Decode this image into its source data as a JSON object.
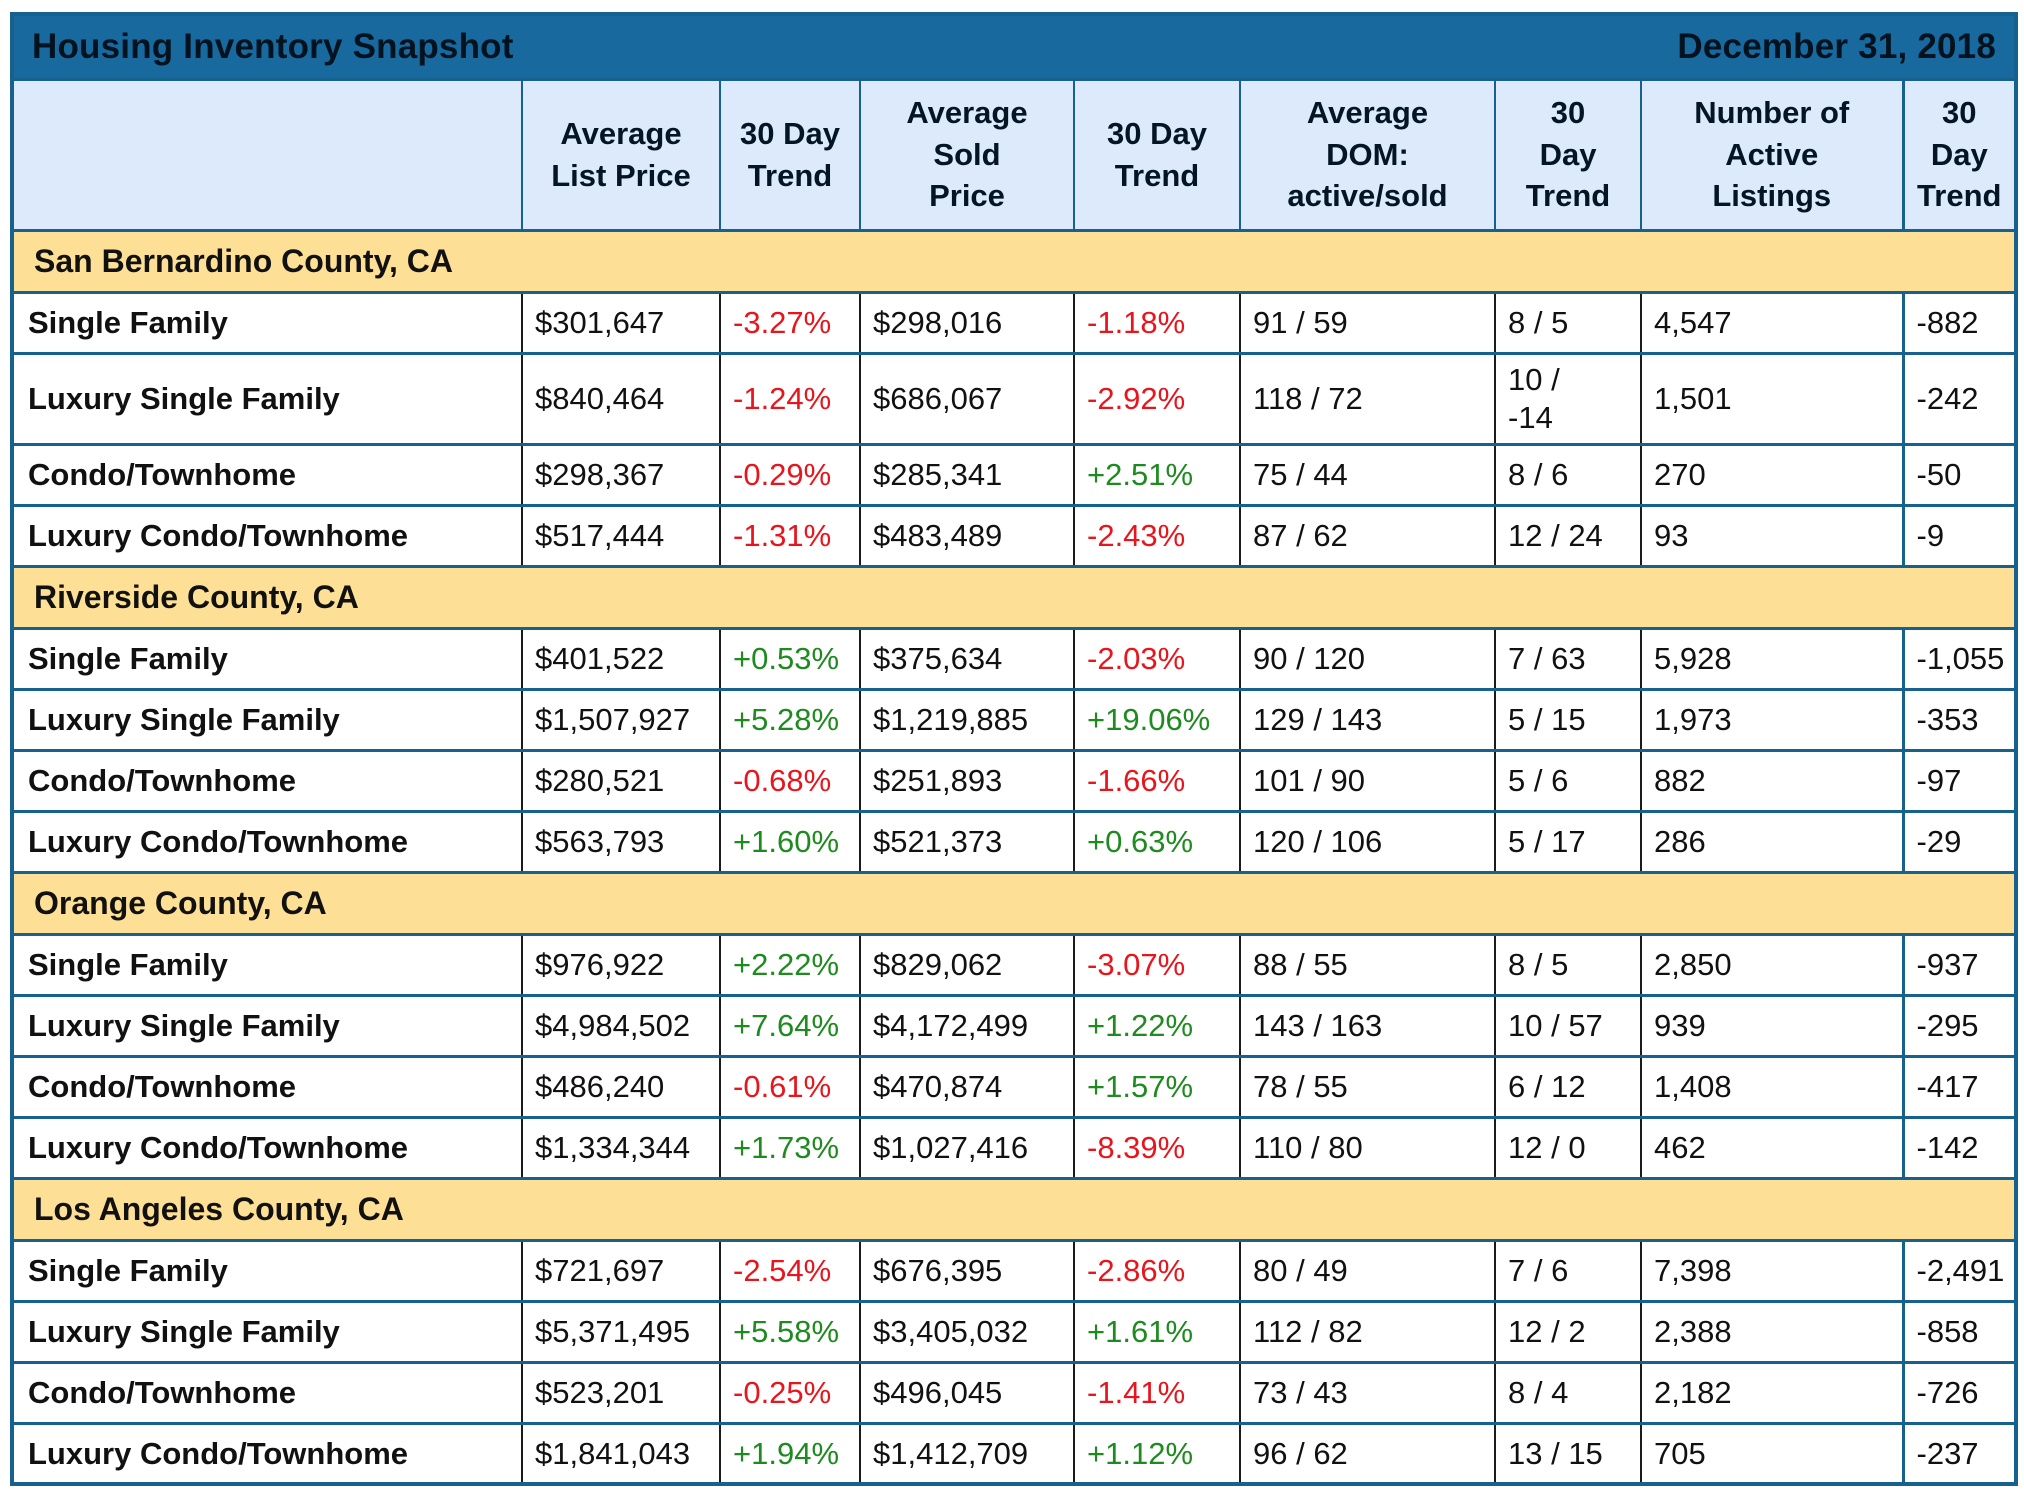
{
  "colors": {
    "title_bar_bg": "#17699E",
    "header_row_bg": "#DCEAFB",
    "section_row_bg": "#FDE096",
    "table_border": "#16618E",
    "negative_text": "#E8151D",
    "positive_text": "#1F8A1F"
  },
  "chart_data": {
    "type": "table",
    "title": "Housing Inventory Snapshot",
    "date": "December 31, 2018",
    "columns": [
      "",
      "Average\nList Price",
      "30 Day\nTrend",
      "Average\nSold\nPrice",
      "30 Day\nTrend",
      "Average\nDOM:\nactive/sold",
      "30\nDay\nTrend",
      "Number of\nActive\nListings",
      "30\nDay\nTrend"
    ],
    "sections": [
      {
        "name": "San Bernardino County, CA",
        "rows": [
          {
            "label": "Single Family",
            "cells": [
              {
                "text": "$301,647"
              },
              {
                "text": "-3.27%",
                "tone": "negative"
              },
              {
                "text": "$298,016"
              },
              {
                "text": "-1.18%",
                "tone": "negative"
              },
              {
                "text": "91 / 59"
              },
              {
                "text": "8 / 5"
              },
              {
                "text": "4,547"
              },
              {
                "text": "-882"
              }
            ]
          },
          {
            "label": "Luxury Single Family",
            "cells": [
              {
                "text": "$840,464"
              },
              {
                "text": "-1.24%",
                "tone": "negative"
              },
              {
                "text": "$686,067"
              },
              {
                "text": "-2.92%",
                "tone": "negative"
              },
              {
                "text": "118 / 72"
              },
              {
                "text": "10 /\n-14"
              },
              {
                "text": "1,501"
              },
              {
                "text": "-242"
              }
            ]
          },
          {
            "label": "Condo/Townhome",
            "cells": [
              {
                "text": "$298,367"
              },
              {
                "text": "-0.29%",
                "tone": "negative"
              },
              {
                "text": "$285,341"
              },
              {
                "text": "+2.51%",
                "tone": "positive"
              },
              {
                "text": "75 / 44"
              },
              {
                "text": "8 / 6"
              },
              {
                "text": "270"
              },
              {
                "text": "-50"
              }
            ]
          },
          {
            "label": "Luxury Condo/Townhome",
            "cells": [
              {
                "text": "$517,444"
              },
              {
                "text": "-1.31%",
                "tone": "negative"
              },
              {
                "text": "$483,489"
              },
              {
                "text": "-2.43%",
                "tone": "negative"
              },
              {
                "text": "87 / 62"
              },
              {
                "text": "12 / 24"
              },
              {
                "text": "93"
              },
              {
                "text": "-9"
              }
            ]
          }
        ]
      },
      {
        "name": "Riverside County, CA",
        "rows": [
          {
            "label": "Single Family",
            "cells": [
              {
                "text": "$401,522"
              },
              {
                "text": "+0.53%",
                "tone": "positive"
              },
              {
                "text": "$375,634"
              },
              {
                "text": "-2.03%",
                "tone": "negative"
              },
              {
                "text": "90 / 120"
              },
              {
                "text": "7 / 63"
              },
              {
                "text": "5,928"
              },
              {
                "text": "-1,055"
              }
            ]
          },
          {
            "label": "Luxury Single Family",
            "cells": [
              {
                "text": "$1,507,927"
              },
              {
                "text": "+5.28%",
                "tone": "positive"
              },
              {
                "text": "$1,219,885"
              },
              {
                "text": "+19.06%",
                "tone": "positive"
              },
              {
                "text": "129 / 143"
              },
              {
                "text": "5 / 15"
              },
              {
                "text": "1,973"
              },
              {
                "text": "-353"
              }
            ]
          },
          {
            "label": "Condo/Townhome",
            "cells": [
              {
                "text": "$280,521"
              },
              {
                "text": "-0.68%",
                "tone": "negative"
              },
              {
                "text": "$251,893"
              },
              {
                "text": "-1.66%",
                "tone": "negative"
              },
              {
                "text": "101 / 90"
              },
              {
                "text": "5 / 6"
              },
              {
                "text": "882"
              },
              {
                "text": "-97"
              }
            ]
          },
          {
            "label": "Luxury Condo/Townhome",
            "cells": [
              {
                "text": "$563,793"
              },
              {
                "text": "+1.60%",
                "tone": "positive"
              },
              {
                "text": "$521,373"
              },
              {
                "text": "+0.63%",
                "tone": "positive"
              },
              {
                "text": "120 / 106"
              },
              {
                "text": "5 / 17"
              },
              {
                "text": "286"
              },
              {
                "text": "-29"
              }
            ]
          }
        ]
      },
      {
        "name": "Orange County, CA",
        "rows": [
          {
            "label": "Single Family",
            "cells": [
              {
                "text": "$976,922"
              },
              {
                "text": "+2.22%",
                "tone": "positive"
              },
              {
                "text": "$829,062"
              },
              {
                "text": "-3.07%",
                "tone": "negative"
              },
              {
                "text": "88 / 55"
              },
              {
                "text": "8 / 5"
              },
              {
                "text": "2,850"
              },
              {
                "text": "-937"
              }
            ]
          },
          {
            "label": "Luxury Single Family",
            "cells": [
              {
                "text": "$4,984,502"
              },
              {
                "text": "+7.64%",
                "tone": "positive"
              },
              {
                "text": "$4,172,499"
              },
              {
                "text": "+1.22%",
                "tone": "positive"
              },
              {
                "text": "143 / 163"
              },
              {
                "text": "10 / 57"
              },
              {
                "text": "939"
              },
              {
                "text": "-295"
              }
            ]
          },
          {
            "label": "Condo/Townhome",
            "cells": [
              {
                "text": "$486,240"
              },
              {
                "text": "-0.61%",
                "tone": "negative"
              },
              {
                "text": "$470,874"
              },
              {
                "text": "+1.57%",
                "tone": "positive"
              },
              {
                "text": "78 / 55"
              },
              {
                "text": "6 / 12"
              },
              {
                "text": "1,408"
              },
              {
                "text": "-417"
              }
            ]
          },
          {
            "label": "Luxury Condo/Townhome",
            "cells": [
              {
                "text": "$1,334,344"
              },
              {
                "text": "+1.73%",
                "tone": "positive"
              },
              {
                "text": "$1,027,416"
              },
              {
                "text": "-8.39%",
                "tone": "negative"
              },
              {
                "text": "110 / 80"
              },
              {
                "text": "12 / 0"
              },
              {
                "text": "462"
              },
              {
                "text": "-142"
              }
            ]
          }
        ]
      },
      {
        "name": "Los Angeles County, CA",
        "rows": [
          {
            "label": "Single Family",
            "cells": [
              {
                "text": "$721,697"
              },
              {
                "text": "-2.54%",
                "tone": "negative"
              },
              {
                "text": "$676,395"
              },
              {
                "text": "-2.86%",
                "tone": "negative"
              },
              {
                "text": "80 / 49"
              },
              {
                "text": "7 / 6"
              },
              {
                "text": "7,398"
              },
              {
                "text": "-2,491"
              }
            ]
          },
          {
            "label": "Luxury Single Family",
            "cells": [
              {
                "text": "$5,371,495"
              },
              {
                "text": "+5.58%",
                "tone": "positive"
              },
              {
                "text": "$3,405,032"
              },
              {
                "text": "+1.61%",
                "tone": "positive"
              },
              {
                "text": "112 / 82"
              },
              {
                "text": "12 / 2"
              },
              {
                "text": "2,388"
              },
              {
                "text": "-858"
              }
            ]
          },
          {
            "label": "Condo/Townhome",
            "cells": [
              {
                "text": "$523,201"
              },
              {
                "text": "-0.25%",
                "tone": "negative"
              },
              {
                "text": "$496,045"
              },
              {
                "text": "-1.41%",
                "tone": "negative"
              },
              {
                "text": "73 / 43"
              },
              {
                "text": "8 / 4"
              },
              {
                "text": "2,182"
              },
              {
                "text": "-726"
              }
            ]
          },
          {
            "label": "Luxury Condo/Townhome",
            "cells": [
              {
                "text": "$1,841,043"
              },
              {
                "text": "+1.94%",
                "tone": "positive"
              },
              {
                "text": "$1,412,709"
              },
              {
                "text": "+1.12%",
                "tone": "positive"
              },
              {
                "text": "96 / 62"
              },
              {
                "text": "13 / 15"
              },
              {
                "text": "705"
              },
              {
                "text": "-237"
              }
            ]
          }
        ]
      }
    ]
  }
}
